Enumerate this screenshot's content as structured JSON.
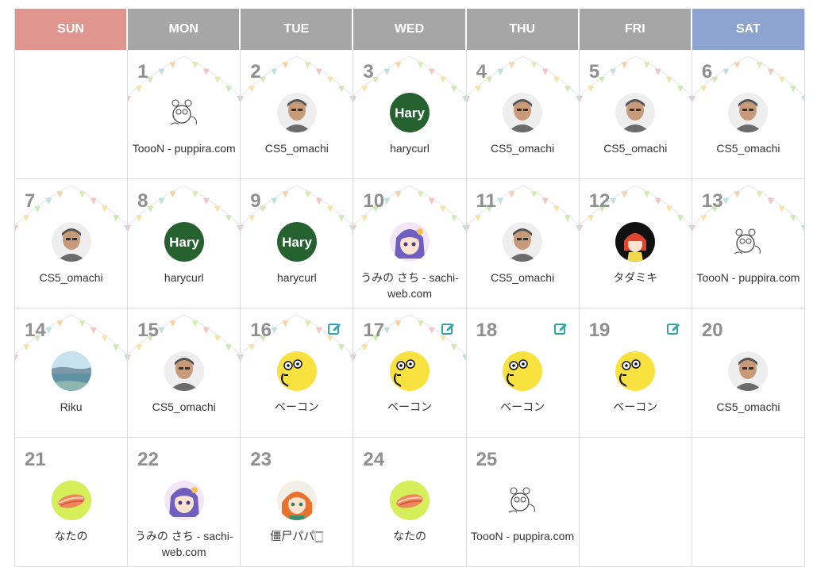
{
  "colors": {
    "sunday_header": "#e1958f",
    "weekday_header": "#a6a6a6",
    "saturday_header": "#8ea4d0",
    "day_number": "#8f8f8f",
    "edit_icon": "#2fa6ad"
  },
  "weekdays": [
    "SUN",
    "MON",
    "TUE",
    "WED",
    "THU",
    "FRI",
    "SAT"
  ],
  "days": [
    {
      "num": "1",
      "name": "ToooN - puppira.com",
      "avatar": "doodle-icon",
      "bunting": true
    },
    {
      "num": "2",
      "name": "CS5_omachi",
      "avatar": "man-icon",
      "bunting": true
    },
    {
      "num": "3",
      "name": "harycurl",
      "avatar": "hary-icon",
      "avatar_text": "Hary",
      "bunting": true
    },
    {
      "num": "4",
      "name": "CS5_omachi",
      "avatar": "man-icon",
      "bunting": true
    },
    {
      "num": "5",
      "name": "CS5_omachi",
      "avatar": "man-icon",
      "bunting": true
    },
    {
      "num": "6",
      "name": "CS5_omachi",
      "avatar": "man-icon",
      "bunting": true
    },
    {
      "num": "7",
      "name": "CS5_omachi",
      "avatar": "man-icon",
      "bunting": true
    },
    {
      "num": "8",
      "name": "harycurl",
      "avatar": "hary-icon",
      "avatar_text": "Hary",
      "bunting": true
    },
    {
      "num": "9",
      "name": "harycurl",
      "avatar": "hary-icon",
      "avatar_text": "Hary",
      "bunting": true
    },
    {
      "num": "10",
      "name": "うみの さち - sachi-web.com",
      "avatar": "anime-girl-icon",
      "bunting": true
    },
    {
      "num": "11",
      "name": "CS5_omachi",
      "avatar": "man-icon",
      "bunting": true
    },
    {
      "num": "12",
      "name": "タダミキ",
      "avatar": "red-hair-icon",
      "bunting": true
    },
    {
      "num": "13",
      "name": "ToooN - puppira.com",
      "avatar": "doodle-icon",
      "bunting": true
    },
    {
      "num": "14",
      "name": "Riku",
      "avatar": "landscape-icon",
      "bunting": true
    },
    {
      "num": "15",
      "name": "CS5_omachi",
      "avatar": "man-icon",
      "bunting": true
    },
    {
      "num": "16",
      "name": "ベーコン",
      "avatar": "bacon-face-icon",
      "bunting": true,
      "edit": true
    },
    {
      "num": "17",
      "name": "ベーコン",
      "avatar": "bacon-face-icon",
      "bunting": true,
      "edit": true
    },
    {
      "num": "18",
      "name": "ベーコン",
      "avatar": "bacon-face-icon",
      "bunting": false,
      "edit": true
    },
    {
      "num": "19",
      "name": "ベーコン",
      "avatar": "bacon-face-icon",
      "bunting": false,
      "edit": true
    },
    {
      "num": "20",
      "name": "CS5_omachi",
      "avatar": "man-icon",
      "bunting": false
    },
    {
      "num": "21",
      "name": "なたの",
      "avatar": "salmon-icon",
      "bunting": false
    },
    {
      "num": "22",
      "name": "うみの さち - sachi-web.com",
      "avatar": "anime-girl-icon",
      "bunting": false
    },
    {
      "num": "23",
      "name": "僵尸パパ🀆",
      "avatar": "orange-hair-icon",
      "bunting": false
    },
    {
      "num": "24",
      "name": "なたの",
      "avatar": "salmon-icon",
      "bunting": false
    },
    {
      "num": "25",
      "name": "ToooN - puppira.com",
      "avatar": "doodle-icon",
      "bunting": false
    }
  ]
}
